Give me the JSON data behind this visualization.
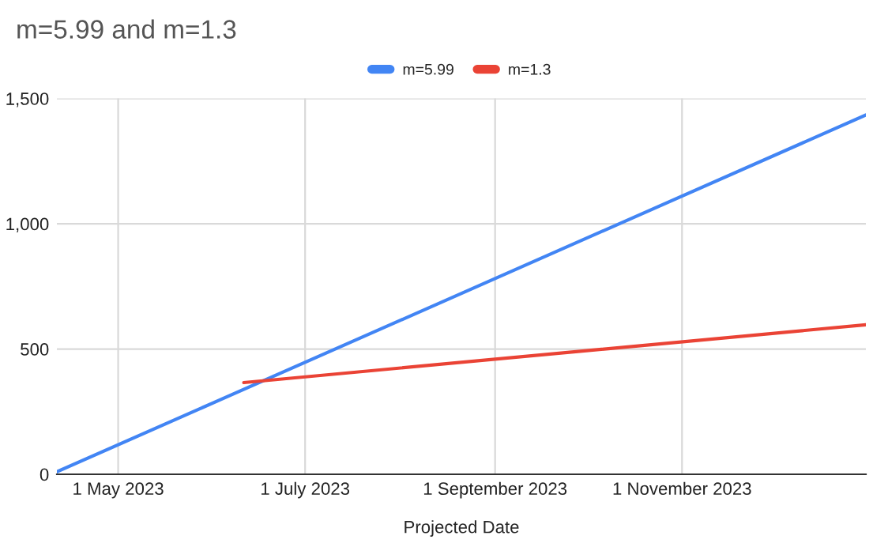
{
  "chart_data": {
    "type": "line",
    "title": "m=5.99 and m=1.3",
    "xlabel": "Projected Date",
    "series": [
      {
        "name": "m=5.99",
        "color": "#4285f4",
        "x": [
          "2023-04-11",
          "2023-12-31"
        ],
        "values": [
          10,
          1434
        ]
      },
      {
        "name": "m=1.3",
        "color": "#ea4335",
        "x": [
          "2023-06-11",
          "2023-12-31"
        ],
        "values": [
          366,
          597
        ]
      }
    ],
    "xlim": [
      "2023-04-11",
      "2023-12-31"
    ],
    "xticks": [
      {
        "value": "2023-05-01",
        "label": "1 May 2023"
      },
      {
        "value": "2023-07-01",
        "label": "1 July 2023"
      },
      {
        "value": "2023-09-01",
        "label": "1 September 2023"
      },
      {
        "value": "2023-11-01",
        "label": "1 November 2023"
      }
    ],
    "ylim": [
      0,
      1500
    ],
    "yticks": [
      {
        "value": 0,
        "label": "0"
      },
      {
        "value": 500,
        "label": "500"
      },
      {
        "value": 1000,
        "label": "1,000"
      },
      {
        "value": 1500,
        "label": "1,500"
      }
    ],
    "grid": true,
    "legend": "top",
    "marker": "none",
    "line_style": "solid"
  }
}
